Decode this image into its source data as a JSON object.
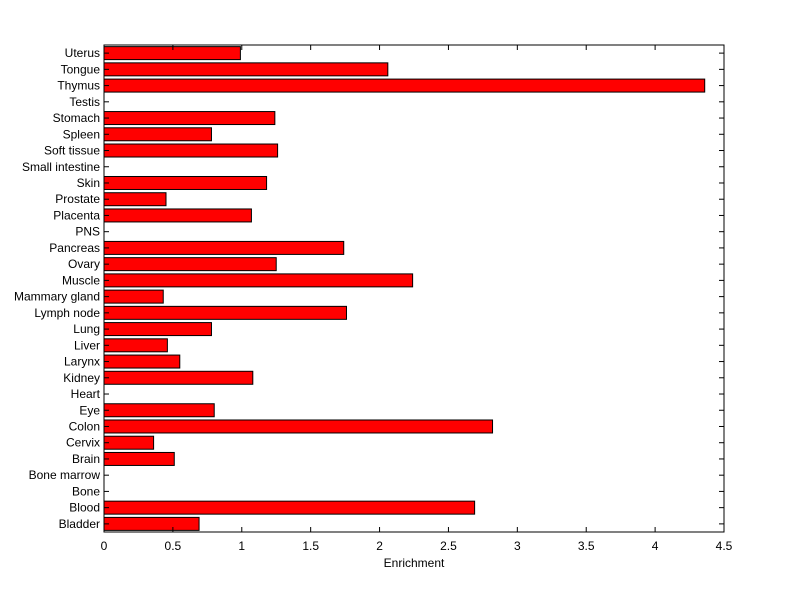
{
  "chart_data": {
    "type": "bar",
    "orientation": "horizontal",
    "xlabel": "Enrichment",
    "xlim": [
      0,
      4.5
    ],
    "xticks": [
      0,
      0.5,
      1,
      1.5,
      2,
      2.5,
      3,
      3.5,
      4,
      4.5
    ],
    "xtick_labels": [
      "0",
      "0.5",
      "1",
      "1.5",
      "2",
      "2.5",
      "3",
      "3.5",
      "4",
      "4.5"
    ],
    "grid": false,
    "bar_color": "#ff0000",
    "categories": [
      "Bladder",
      "Blood",
      "Bone",
      "Bone marrow",
      "Brain",
      "Cervix",
      "Colon",
      "Eye",
      "Heart",
      "Kidney",
      "Larynx",
      "Liver",
      "Lung",
      "Lymph node",
      "Mammary gland",
      "Muscle",
      "Ovary",
      "Pancreas",
      "PNS",
      "Placenta",
      "Prostate",
      "Skin",
      "Small intestine",
      "Soft tissue",
      "Spleen",
      "Stomach",
      "Testis",
      "Thymus",
      "Tongue",
      "Uterus"
    ],
    "values": [
      0.69,
      2.69,
      0,
      0,
      0.51,
      0.36,
      2.82,
      0.8,
      0,
      1.08,
      0.55,
      0.46,
      0.78,
      1.76,
      0.43,
      2.24,
      1.25,
      1.74,
      0,
      1.07,
      0.45,
      1.18,
      0,
      1.26,
      0.78,
      1.24,
      0,
      4.36,
      2.06,
      0.99
    ]
  }
}
